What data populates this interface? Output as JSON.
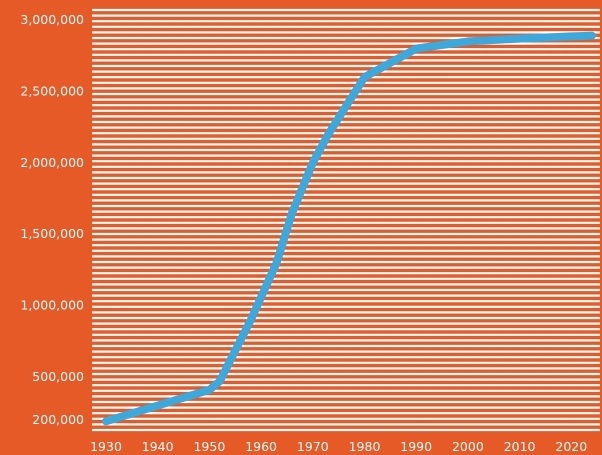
{
  "chart_data": {
    "type": "line",
    "title": "",
    "xlabel": "",
    "ylabel": "",
    "x": [
      1930,
      1940,
      1950,
      1952,
      1958,
      1963,
      1966,
      1970,
      1973,
      1980,
      1990,
      2000,
      2010,
      2020,
      2024
    ],
    "series": [
      {
        "values": [
          190000,
          300000,
          410000,
          470000,
          900000,
          1300000,
          1650000,
          2000000,
          2200000,
          2600000,
          2800000,
          2850000,
          2870000,
          2885000,
          2890000
        ]
      }
    ],
    "xlim": [
      1930,
      2024
    ],
    "ylim": [
      150000,
      3000000
    ],
    "x_ticks": [
      1930,
      1940,
      1950,
      1960,
      1970,
      1980,
      1990,
      2000,
      2010,
      2020
    ],
    "x_tick_labels": [
      "1930",
      "1940",
      "1950",
      "1960",
      "1970",
      "1980",
      "1990",
      "2000",
      "2010",
      "2020"
    ],
    "y_ticks": [
      200000,
      500000,
      1000000,
      1500000,
      2000000,
      2500000,
      3000000
    ],
    "y_tick_labels": [
      "200,000",
      "500,000",
      "1,000,000",
      "1,500,000",
      "2,000,000",
      "2,500,000",
      "3,000,000"
    ],
    "grid": true,
    "grid_style": "dense horizontal stripes",
    "colors": {
      "background": "#e55a26",
      "grid": "#ffffff",
      "line": "#3aa9de",
      "text": "#ffffff"
    }
  }
}
